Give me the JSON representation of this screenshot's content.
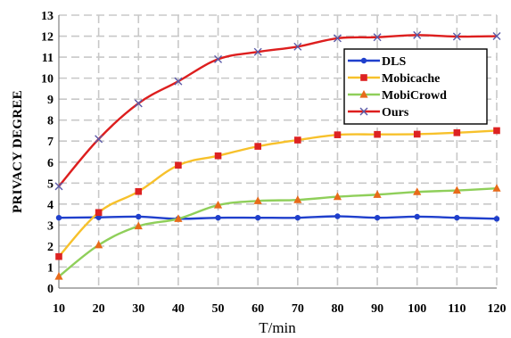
{
  "chart_data": {
    "type": "line",
    "title": "",
    "xlabel": "T/min",
    "ylabel": "PRIVACY DEGREE",
    "x": [
      10,
      20,
      30,
      40,
      50,
      60,
      70,
      80,
      90,
      100,
      110,
      120
    ],
    "xlim": [
      10,
      120
    ],
    "ylim": [
      0,
      13
    ],
    "yticks": [
      0,
      1,
      2,
      3,
      4,
      5,
      6,
      7,
      8,
      9,
      10,
      11,
      12,
      13
    ],
    "grid": true,
    "legend_position": "right",
    "series": [
      {
        "name": "DLS",
        "color": "#1f3fcc",
        "marker": "circle",
        "values": [
          3.35,
          3.37,
          3.4,
          3.3,
          3.35,
          3.35,
          3.35,
          3.42,
          3.35,
          3.4,
          3.35,
          3.3
        ]
      },
      {
        "name": "Mobicache",
        "color": "#f7c12b",
        "marker_color": "#dd2222",
        "marker": "square",
        "values": [
          1.5,
          3.6,
          4.6,
          5.85,
          6.3,
          6.75,
          7.05,
          7.3,
          7.32,
          7.33,
          7.4,
          7.5
        ]
      },
      {
        "name": "MobiCrowd",
        "color": "#8fcf5a",
        "marker_color": "#e86a1a",
        "marker": "triangle",
        "values": [
          0.55,
          2.05,
          2.95,
          3.3,
          3.95,
          4.15,
          4.2,
          4.35,
          4.45,
          4.58,
          4.65,
          4.75
        ]
      },
      {
        "name": "Ours",
        "color": "#dd1e1e",
        "marker_color": "#5a5aa8",
        "marker": "x",
        "values": [
          4.85,
          7.1,
          8.8,
          9.85,
          10.9,
          11.25,
          11.5,
          11.9,
          11.95,
          12.05,
          11.98,
          12.0
        ]
      }
    ]
  }
}
